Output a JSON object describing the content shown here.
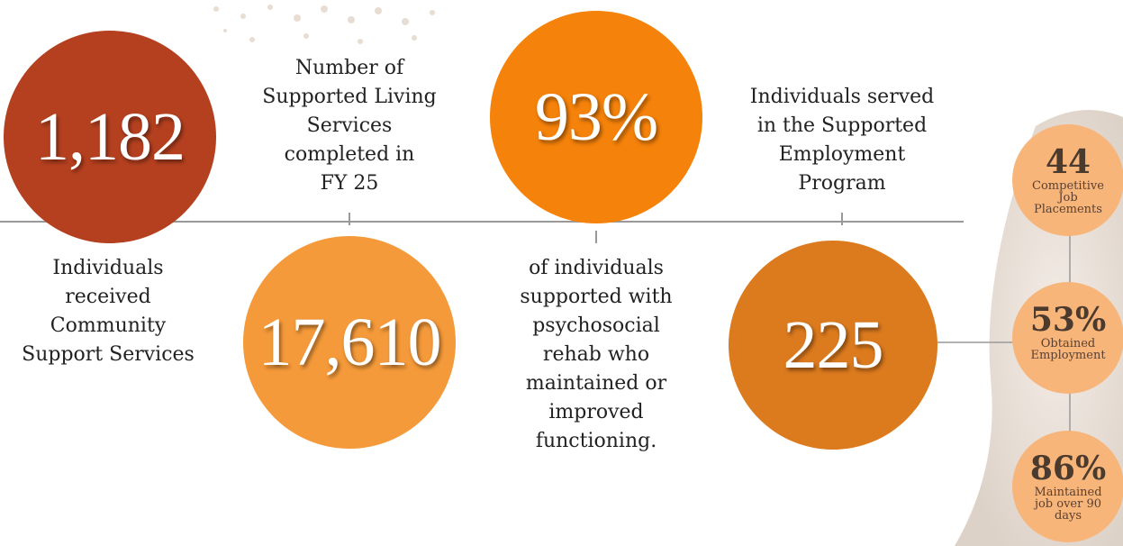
{
  "stats": [
    {
      "value": "1,182",
      "label": [
        "Individuals",
        "received",
        "Community",
        "Support Services"
      ]
    },
    {
      "value": "17,610",
      "label": [
        "Number of",
        "Supported Living",
        "Services",
        "completed in",
        "FY 25"
      ]
    },
    {
      "value": "93%",
      "label": [
        "of individuals",
        "supported with",
        "psychosocial",
        "rehab who",
        "maintained or",
        "improved",
        "functioning."
      ]
    },
    {
      "value": "225",
      "label": [
        "Individuals served",
        "in the Supported",
        "Employment",
        "Program"
      ]
    }
  ],
  "sub_stats": [
    {
      "value": "44",
      "label": [
        "Competitive",
        "Job",
        "Placements"
      ]
    },
    {
      "value": "53%",
      "label": [
        "Obtained",
        "Employment"
      ]
    },
    {
      "value": "86%",
      "label": [
        "Maintained",
        "job over 90",
        "days"
      ]
    }
  ]
}
